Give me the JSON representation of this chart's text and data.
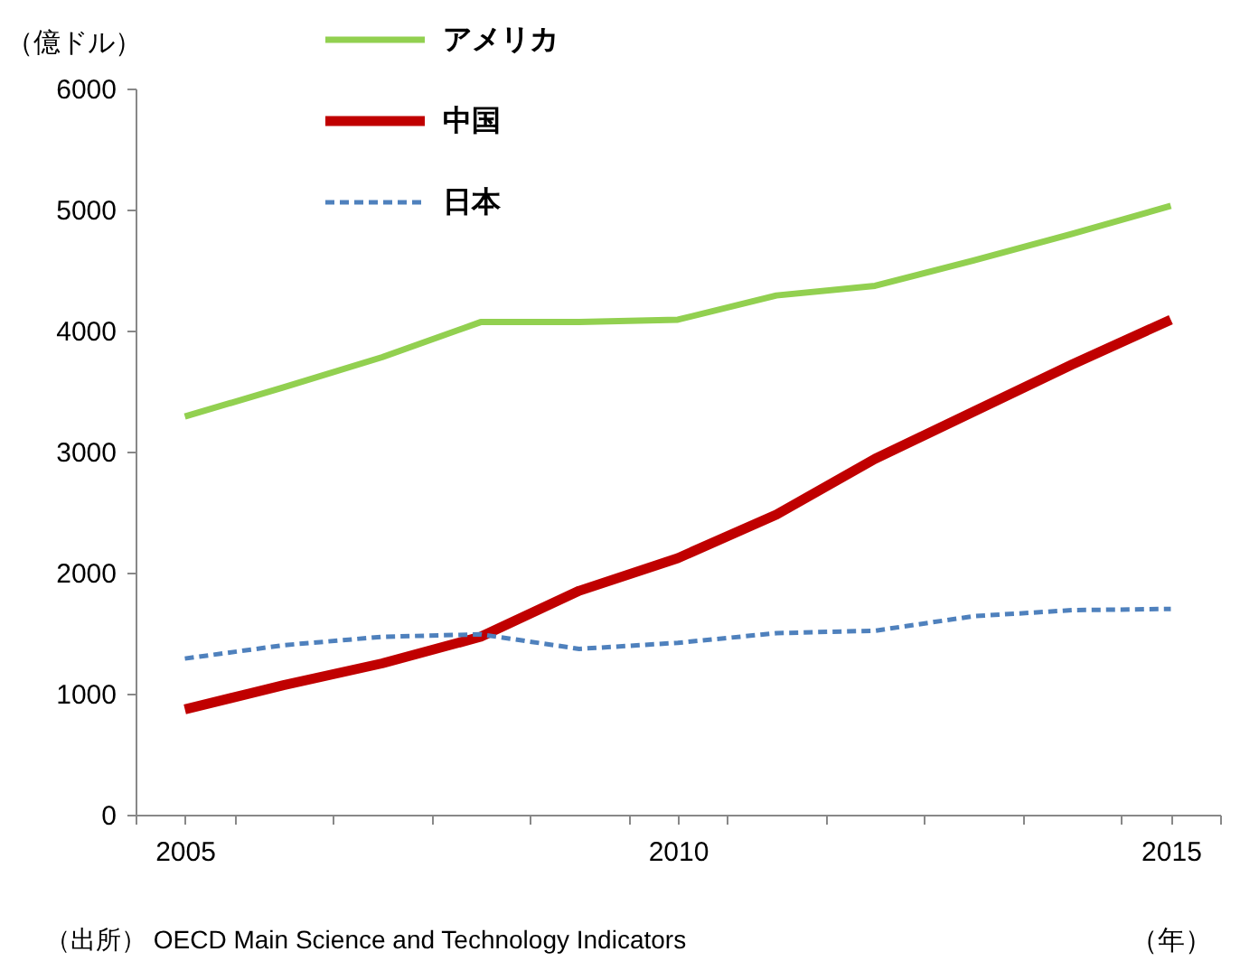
{
  "chart_data": {
    "type": "line",
    "ylabel": "（億ドル）",
    "xlabel": "（年）",
    "x": [
      2005,
      2006,
      2007,
      2008,
      2009,
      2010,
      2011,
      2012,
      2013,
      2014,
      2015
    ],
    "series": [
      {
        "name": "アメリカ",
        "color": "#92d050",
        "line_style": "solid",
        "values": [
          3290,
          3530,
          3780,
          4070,
          4070,
          4090,
          4290,
          4370,
          4580,
          4800,
          5030
        ]
      },
      {
        "name": "中国",
        "color": "#c00000",
        "line_style": "solid",
        "values": [
          870,
          1070,
          1250,
          1470,
          1850,
          2120,
          2480,
          2940,
          3330,
          3720,
          4090
        ]
      },
      {
        "name": "日本",
        "color": "#4f81bd",
        "line_style": "dashed",
        "values": [
          1290,
          1400,
          1470,
          1490,
          1370,
          1420,
          1500,
          1520,
          1640,
          1690,
          1700
        ]
      }
    ],
    "xlim": [
      2004.5,
      2015.5
    ],
    "xticks": [
      {
        "value": 2004.5,
        "label": null
      },
      2005,
      {
        "value": 2005.5,
        "label": null
      },
      {
        "value": 2006.5,
        "label": null
      },
      {
        "value": 2007.5,
        "label": null
      },
      {
        "value": 2008.5,
        "label": null
      },
      {
        "value": 2009.5,
        "label": null
      },
      2010,
      {
        "value": 2010.5,
        "label": null
      },
      {
        "value": 2011.5,
        "label": null
      },
      {
        "value": 2012.5,
        "label": null
      },
      {
        "value": 2013.5,
        "label": null
      },
      {
        "value": 2014.5,
        "label": null
      },
      2015,
      {
        "value": 2015.5,
        "label": null
      }
    ],
    "ylim": [
      0,
      6000
    ],
    "yticks": [
      0,
      1000,
      2000,
      3000,
      4000,
      5000,
      6000
    ],
    "grid": false,
    "legend": "top",
    "marker": "none",
    "annotations": [
      "（出所） OECD Main Science and Technology Indicators"
    ]
  }
}
